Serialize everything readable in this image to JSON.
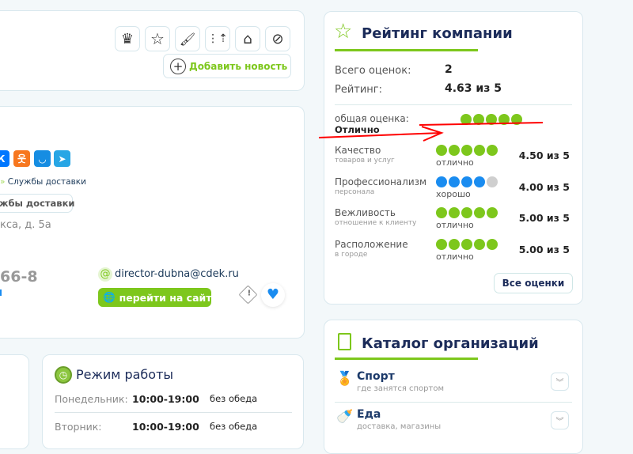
{
  "toolbar": {
    "icons": [
      "crown-icon",
      "star-icon",
      "paint-roller-icon",
      "hierarchy-icon",
      "home-icon",
      "block-icon"
    ],
    "add_news": "Добавить новость"
  },
  "company": {
    "socials": [
      "К",
      "",
      "",
      ""
    ],
    "category_link": "Службы доставки",
    "category_tag": "жбы доставки",
    "address": "кса, д. 5а",
    "phone": "66-8",
    "email": "director-dubna@cdek.ru",
    "website_button": "перейти на сайт"
  },
  "schedule": {
    "title": "Режим работы",
    "rows": [
      {
        "day": "Понедельник:",
        "time": "10:00-19:00",
        "note": "без обеда"
      },
      {
        "day": "Вторник:",
        "time": "10:00-19:00",
        "note": "без обеда"
      }
    ]
  },
  "rating": {
    "title": "Рейтинг компании",
    "total_label": "Всего оценок:",
    "total_value": "2",
    "rating_label": "Рейтинг:",
    "rating_value": "4.63 из 5",
    "overall_label": "общая оценка:",
    "overall_value": "Отлично",
    "overall_dots": 5,
    "rows": [
      {
        "label": "Качество",
        "sub": "товаров и услуг",
        "dots": 5,
        "color": "#7dc71c",
        "word": "отлично",
        "value": "4.50 из 5"
      },
      {
        "label": "Профессионализм",
        "sub": "персонала",
        "dots": 4,
        "color": "#1a8cf0",
        "word": "хорошо",
        "value": "4.00 из 5"
      },
      {
        "label": "Вежливость",
        "sub": "отношение к клиенту",
        "dots": 5,
        "color": "#7dc71c",
        "word": "отлично",
        "value": "5.00 из 5"
      },
      {
        "label": "Расположение",
        "sub": "в городе",
        "dots": 5,
        "color": "#7dc71c",
        "word": "отлично",
        "value": "5.00 из 5"
      }
    ],
    "all_button": "Все оценки"
  },
  "catalog": {
    "title": "Каталог организаций",
    "items": [
      {
        "name": "Спорт",
        "sub": "где занятся спортом",
        "icon": "medal-icon"
      },
      {
        "name": "Еда",
        "sub": "доставка, магазины",
        "icon": "food-icon"
      }
    ]
  },
  "colors": {
    "accent_green": "#7dc71c",
    "title_navy": "#1c2c5a",
    "link_blue": "#1a8cf0",
    "annotation_red": "#ff0000"
  }
}
